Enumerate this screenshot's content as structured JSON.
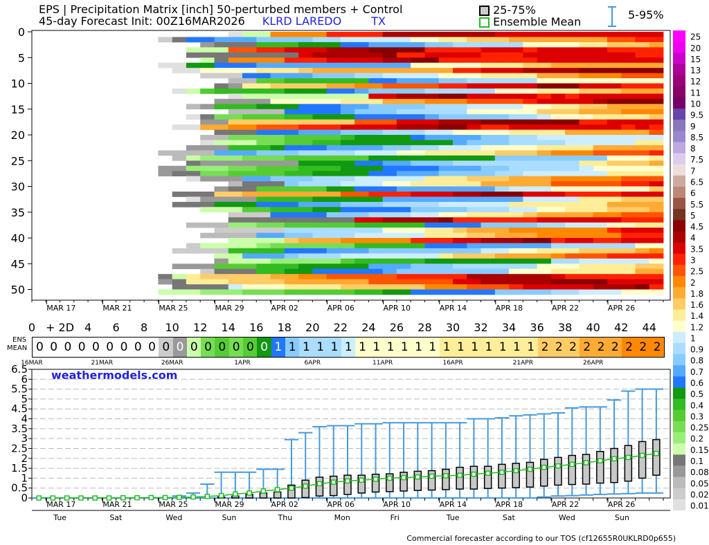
{
  "header": {
    "line1": "EPS | Precipitation Matrix [inch]  50-perturbed members + Control",
    "line2_prefix": "45-day Forecast Init: 00Z16MAR2026",
    "station": "KLRD  LAREDO",
    "state": "TX",
    "legend_box": "25-75%",
    "legend_mean": "Ensemble Mean",
    "legend_whisker": "5-95%"
  },
  "colors": {
    "blue_text": "#2222dd",
    "box_fill": "#c8c8c8",
    "mean_line": "#22bb22",
    "whisker": "#4499dd"
  },
  "matrix": {
    "y_ticks": [
      "0",
      "5",
      "10",
      "15",
      "20",
      "25",
      "30",
      "35",
      "40",
      "45",
      "50"
    ],
    "date_labels": [
      "MAR 17",
      "MAR 21",
      "MAR 25",
      "MAR 29",
      "APR 02",
      "APR 06",
      "APR 10",
      "APR 14",
      "APR 18",
      "APR 22",
      "APR 26"
    ],
    "day_axis": [
      "0",
      "+ 2D",
      "4",
      "6",
      "8",
      "10",
      "12",
      "14",
      "16",
      "18",
      "20",
      "22",
      "24",
      "26",
      "28",
      "30",
      "32",
      "34",
      "36",
      "38",
      "40",
      "42",
      "44"
    ]
  },
  "colorbar": {
    "labels": [
      "25",
      "20",
      "15",
      "13",
      "12",
      "11",
      "10",
      "9.5",
      "9",
      "8.5",
      "8",
      "7.5",
      "7",
      "6.5",
      "6",
      "5.5",
      "5",
      "4.5",
      "4",
      "3.5",
      "3",
      "2.5",
      "2",
      "1.8",
      "1.6",
      "1.4",
      "1.2",
      "1",
      "0.9",
      "0.8",
      "0.7",
      "0.6",
      "0.5",
      "0.4",
      "0.3",
      "0.25",
      "0.2",
      "0.15",
      "0.1",
      "0.08",
      "0.05",
      "0.02",
      "0.01"
    ],
    "colors": [
      "#ff00ff",
      "#ee00ee",
      "#cc00cc",
      "#aa0099",
      "#990077",
      "#880066",
      "#770066",
      "#6644aa",
      "#8877bb",
      "#9988cc",
      "#bbaadd",
      "#ddccee",
      "#eedddd",
      "#ccaaa0",
      "#bb8877",
      "#995544",
      "#773322",
      "#880000",
      "#aa0000",
      "#dd0000",
      "#ff2200",
      "#ff5500",
      "#ff8800",
      "#ffaa33",
      "#ffcc66",
      "#ffee99",
      "#ffffcc",
      "#cceeff",
      "#aaddff",
      "#88ccff",
      "#55aaff",
      "#2277ff",
      "#119911",
      "#33bb22",
      "#55cc33",
      "#77dd55",
      "#99ee77",
      "#ccffaa",
      "#777777",
      "#999999",
      "#bbbbbb",
      "#cccccc",
      "#e0e0e0"
    ]
  },
  "ensemble_mean": {
    "ens_label": "ENS",
    "mean_label": "MEAN",
    "values": [
      "0",
      "0",
      "0",
      "0",
      "0",
      "0",
      "0",
      "0",
      "0",
      "0",
      "0",
      "0",
      "0",
      "0",
      "0",
      "0",
      "0",
      "1",
      "1",
      "1",
      "1",
      "1",
      "1",
      "1",
      "1",
      "1",
      "1",
      "1",
      "1",
      "1",
      "1",
      "1",
      "1",
      "1",
      "1",
      "1",
      "2",
      "2",
      "2",
      "2",
      "2",
      "2",
      "2",
      "2",
      "2"
    ],
    "date_labels": [
      "16MAR",
      "21MAR",
      "26MAR",
      "1APR",
      "6APR",
      "11APR",
      "16APR",
      "21APR",
      "26APR"
    ]
  },
  "chart_data": {
    "type": "box",
    "title": "EPS | Precipitation Matrix [inch]  50-perturbed members + Control",
    "ylim": [
      0,
      6.5
    ],
    "y_ticks": [
      "0",
      "0.5",
      "1",
      "1.5",
      "2",
      "2.5",
      "3",
      "3.5",
      "4",
      "4.5",
      "5",
      "5.5",
      "6",
      "6.5"
    ],
    "x_date_labels": [
      "MAR 17",
      "MAR 21",
      "MAR 25",
      "MAR 29",
      "APR 02",
      "APR 06",
      "APR 10",
      "APR 14",
      "APR 18",
      "APR 22",
      "APR 26"
    ],
    "x_day_labels": [
      "Tue",
      "Sat",
      "Wed",
      "Sun",
      "Thu",
      "Mon",
      "Fri",
      "Tue",
      "Sat",
      "Wed",
      "Sun"
    ],
    "mean": [
      0,
      0,
      0,
      0,
      0,
      0,
      0.01,
      0.01,
      0.02,
      0.02,
      0.03,
      0.05,
      0.08,
      0.12,
      0.2,
      0.25,
      0.35,
      0.42,
      0.5,
      0.6,
      0.72,
      0.8,
      0.86,
      0.9,
      0.95,
      1.0,
      1.03,
      1.06,
      1.1,
      1.12,
      1.15,
      1.2,
      1.25,
      1.3,
      1.38,
      1.45,
      1.55,
      1.62,
      1.7,
      1.78,
      1.88,
      1.98,
      2.05,
      2.15,
      2.25
    ],
    "q25": [
      0,
      0,
      0,
      0,
      0,
      0,
      0,
      0,
      0,
      0,
      0,
      0,
      0,
      0,
      0,
      0,
      0,
      0,
      0,
      0.02,
      0.1,
      0.12,
      0.18,
      0.25,
      0.3,
      0.32,
      0.35,
      0.38,
      0.4,
      0.42,
      0.45,
      0.45,
      0.48,
      0.5,
      0.52,
      0.55,
      0.6,
      0.65,
      0.68,
      0.7,
      0.75,
      0.78,
      0.85,
      1.0,
      1.15
    ],
    "q75": [
      0,
      0,
      0,
      0,
      0,
      0,
      0,
      0,
      0,
      0,
      0,
      0,
      0,
      0.05,
      0.1,
      0.18,
      0.25,
      0.3,
      0.65,
      0.9,
      1.05,
      1.1,
      1.15,
      1.15,
      1.2,
      1.22,
      1.3,
      1.35,
      1.38,
      1.45,
      1.55,
      1.6,
      1.6,
      1.7,
      1.75,
      1.8,
      1.95,
      2.05,
      2.15,
      2.2,
      2.35,
      2.5,
      2.65,
      2.85,
      2.95
    ],
    "p05": [
      0,
      0,
      0,
      0,
      0,
      0,
      0,
      0,
      0,
      0,
      0,
      0,
      0,
      0,
      0,
      0,
      0,
      0,
      0,
      0,
      0,
      0,
      0,
      0,
      0,
      0,
      0,
      0,
      0,
      0,
      0,
      0,
      0,
      0,
      0,
      0,
      0.05,
      0.1,
      0.12,
      0.15,
      0.18,
      0.2,
      0.22,
      0.25,
      0.25
    ],
    "p95": [
      0,
      0,
      0,
      0,
      0,
      0,
      0,
      0,
      0,
      0,
      0.1,
      0.25,
      0.7,
      1.3,
      1.3,
      1.3,
      1.45,
      1.45,
      2.95,
      3.3,
      3.6,
      3.65,
      3.65,
      3.75,
      3.75,
      3.8,
      3.8,
      3.8,
      3.8,
      3.8,
      3.8,
      4.0,
      4.0,
      4.05,
      4.15,
      4.2,
      4.25,
      4.3,
      4.55,
      4.6,
      4.6,
      4.95,
      5.4,
      5.5,
      5.5
    ]
  },
  "watermark": "weathermodels.com",
  "footer": "Commercial forecaster according to our TOS (cf12655R0UKLRD0p655)"
}
